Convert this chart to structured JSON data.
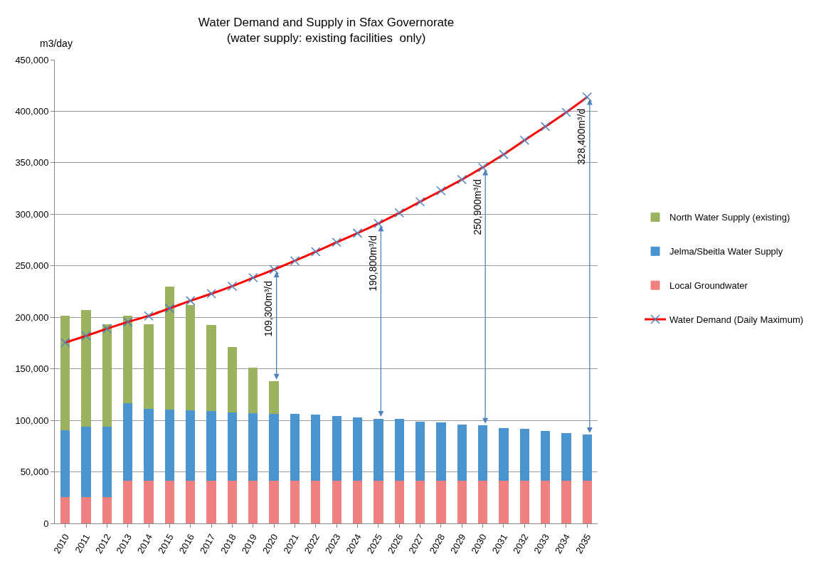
{
  "chart_data": {
    "type": "bar",
    "stacked": true,
    "title": "Water Demand and Supply in Sfax Governorate\n(water supply: existing facilities  only)",
    "ylabel": "m3/day",
    "categories": [
      "2010",
      "2011",
      "2012",
      "2013",
      "2014",
      "2015",
      "2016",
      "2017",
      "2018",
      "2019",
      "2020",
      "2021",
      "2022",
      "2023",
      "2024",
      "2025",
      "2026",
      "2027",
      "2028",
      "2029",
      "2030",
      "2031",
      "2032",
      "2033",
      "2034",
      "2035"
    ],
    "series": [
      {
        "name": "Local Groundwater",
        "color": "#f08080",
        "values": [
          26000,
          26000,
          26000,
          42000,
          42000,
          42000,
          42000,
          42000,
          42000,
          42000,
          42000,
          42000,
          42000,
          42000,
          42000,
          42000,
          42000,
          42000,
          42000,
          42000,
          42000,
          42000,
          42000,
          42000,
          42000,
          42000
        ]
      },
      {
        "name": "Jelma/Sbeitla Water Supply",
        "color": "#4a94d0",
        "values": [
          65000,
          68000,
          68000,
          75000,
          69700,
          68800,
          68000,
          67400,
          65900,
          65600,
          64400,
          63800,
          63000,
          61800,
          60300,
          59400,
          58800,
          56500,
          55600,
          53500,
          52700,
          50300,
          49400,
          47400,
          45600,
          43600
        ]
      },
      {
        "name": "North Water Supply (existing)",
        "color": "#9bb35f",
        "values": [
          110000,
          112600,
          99200,
          84100,
          81500,
          118800,
          101700,
          82900,
          63200,
          43500,
          31200,
          null,
          null,
          null,
          null,
          null,
          null,
          null,
          null,
          null,
          null,
          null,
          null,
          null,
          null,
          null
        ]
      },
      {
        "name": "Water Demand (Daily Maximum)",
        "type": "line",
        "color": "#ff0000",
        "marker": "cross",
        "values": [
          175500,
          182000,
          189000,
          195500,
          201400,
          208700,
          216100,
          222900,
          230200,
          238400,
          246400,
          254900,
          263700,
          272800,
          281700,
          291100,
          301400,
          312200,
          322800,
          333700,
          345500,
          358100,
          371900,
          385100,
          398900,
          413700
        ]
      }
    ],
    "ylim": [
      0,
      450000
    ],
    "yticks": [
      {
        "value": 0,
        "label": "0"
      },
      {
        "value": 50000,
        "label": "50,000"
      },
      {
        "value": 100000,
        "label": "100,000"
      },
      {
        "value": 150000,
        "label": "150,000"
      },
      {
        "value": 200000,
        "label": "200,000"
      },
      {
        "value": 250000,
        "label": "250,000"
      },
      {
        "value": 300000,
        "label": "300,000"
      },
      {
        "value": 350000,
        "label": "350,000"
      },
      {
        "value": 400000,
        "label": "400,000"
      },
      {
        "value": 450000,
        "label": "450,000"
      }
    ],
    "grid": "y",
    "legend": "right",
    "annotations": [
      {
        "text": "109,300m³/d",
        "x": "2020",
        "y": 246400
      },
      {
        "text": "190,800m³/d",
        "x": "2025",
        "y": 291100
      },
      {
        "text": "250,900m³/d",
        "x": "2030",
        "y": 345500
      },
      {
        "text": "328,400m³/d",
        "x": "2035",
        "y": 413700
      }
    ]
  }
}
